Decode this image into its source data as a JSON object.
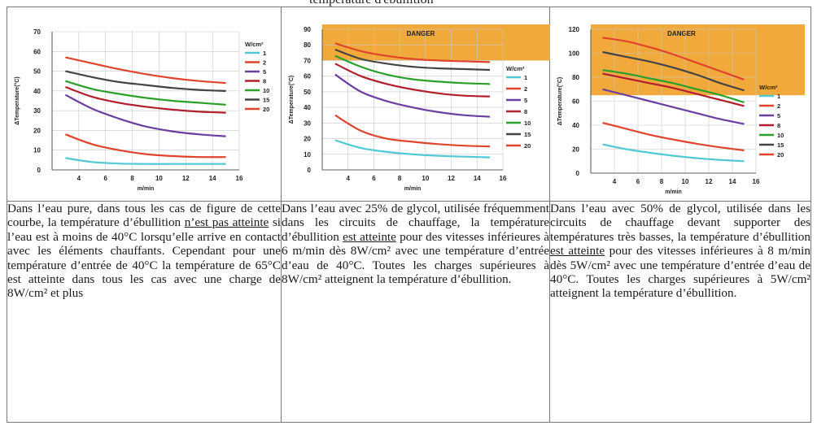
{
  "page": {
    "header_fragment": "température d'ébullition"
  },
  "chart_data": [
    {
      "type": "line",
      "title": "",
      "xlabel": "m/min",
      "ylabel": "ΔTemperature(°C)",
      "xlim": [
        2,
        16
      ],
      "ylim": [
        0,
        70
      ],
      "xticks": [
        2,
        4,
        6,
        8,
        10,
        12,
        14,
        16
      ],
      "yticks": [
        0,
        10,
        20,
        30,
        40,
        50,
        60,
        70
      ],
      "grid": true,
      "legend_title": "W/cm²",
      "legend_position": "right",
      "danger": null,
      "x": [
        3,
        5,
        7,
        9,
        11,
        13,
        15
      ],
      "series": [
        {
          "name": "1",
          "color": "#4fc9d6",
          "values": [
            6,
            4,
            3.2,
            3,
            3,
            3,
            3
          ]
        },
        {
          "name": "2",
          "color": "#e0442c",
          "values": [
            18,
            13,
            10,
            8,
            7,
            6.5,
            6.5
          ]
        },
        {
          "name": "5",
          "color": "#6a3fa0",
          "values": [
            38,
            31,
            26,
            22,
            19.5,
            18,
            17
          ]
        },
        {
          "name": "8",
          "color": "#b11e2c",
          "values": [
            42,
            37,
            34,
            32,
            30.5,
            29.5,
            29
          ]
        },
        {
          "name": "10",
          "color": "#2aa02a",
          "values": [
            45,
            41,
            38.5,
            36.5,
            35,
            34,
            33
          ]
        },
        {
          "name": "15",
          "color": "#444444",
          "values": [
            50,
            47,
            44.5,
            43,
            41.5,
            40.5,
            40
          ]
        },
        {
          "name": "20",
          "color": "#e0442c",
          "values": [
            57,
            54,
            51,
            48.5,
            46.5,
            45,
            44
          ]
        }
      ]
    },
    {
      "type": "line",
      "title": "",
      "xlabel": "m/min",
      "ylabel": "ΔTemperature(°C)",
      "xlim": [
        2,
        16
      ],
      "ylim": [
        0,
        90
      ],
      "xticks": [
        2,
        4,
        6,
        8,
        10,
        12,
        14,
        16
      ],
      "yticks": [
        0,
        10,
        20,
        30,
        40,
        50,
        60,
        70,
        80,
        90
      ],
      "grid": true,
      "legend_title": "W/cm²",
      "legend_position": "right",
      "danger": {
        "label": "DANGER",
        "from": 70,
        "color": "#f0a93a"
      },
      "x": [
        3,
        5,
        7,
        9,
        11,
        13,
        15
      ],
      "series": [
        {
          "name": "1",
          "color": "#4fc9d6",
          "values": [
            19,
            14,
            11.5,
            10,
            9,
            8.5,
            8
          ]
        },
        {
          "name": "2",
          "color": "#e0442c",
          "values": [
            35,
            25,
            20,
            18,
            16.5,
            15.5,
            15
          ]
        },
        {
          "name": "5",
          "color": "#6a3fa0",
          "values": [
            61,
            50,
            44,
            40,
            37,
            35,
            34
          ]
        },
        {
          "name": "8",
          "color": "#b11e2c",
          "values": [
            68,
            60,
            55,
            51.5,
            49,
            47.5,
            47
          ]
        },
        {
          "name": "10",
          "color": "#2aa02a",
          "values": [
            73,
            66,
            61,
            58,
            56.5,
            55.5,
            55
          ]
        },
        {
          "name": "15",
          "color": "#444444",
          "values": [
            77,
            71,
            68,
            66,
            65,
            64.5,
            64
          ]
        },
        {
          "name": "20",
          "color": "#e0442c",
          "values": [
            81,
            76,
            73,
            71,
            70,
            69.5,
            69
          ]
        }
      ]
    },
    {
      "type": "line",
      "title": "",
      "xlabel": "m/min",
      "ylabel": "ΔTemperature(°C)",
      "xlim": [
        2,
        16
      ],
      "ylim": [
        0,
        120
      ],
      "xticks": [
        2,
        4,
        6,
        8,
        10,
        12,
        14,
        16
      ],
      "yticks": [
        0,
        20,
        40,
        60,
        80,
        100,
        120
      ],
      "grid": true,
      "legend_title": "W/cm²",
      "legend_position": "right",
      "danger": {
        "label": "DANGER",
        "from": 65,
        "color": "#f0a93a"
      },
      "x": [
        3,
        5,
        7,
        9,
        11,
        13,
        15
      ],
      "series": [
        {
          "name": "1",
          "color": "#4fc9d6",
          "values": [
            24,
            20,
            17,
            14.5,
            12.5,
            11,
            10
          ]
        },
        {
          "name": "2",
          "color": "#e0442c",
          "values": [
            42,
            37,
            32,
            28,
            24.5,
            21.5,
            19
          ]
        },
        {
          "name": "5",
          "color": "#6a3fa0",
          "values": [
            70,
            65,
            60,
            55,
            50,
            45,
            41
          ]
        },
        {
          "name": "8",
          "color": "#b11e2c",
          "values": [
            83,
            79,
            75,
            71,
            66,
            61,
            56
          ]
        },
        {
          "name": "10",
          "color": "#2aa02a",
          "values": [
            86,
            83,
            79,
            75,
            70,
            65,
            59
          ]
        },
        {
          "name": "15",
          "color": "#444444",
          "values": [
            101,
            97,
            93,
            88,
            82,
            75,
            69
          ]
        },
        {
          "name": "20",
          "color": "#e0442c",
          "values": [
            113,
            110,
            105,
            99,
            92,
            85,
            78
          ]
        }
      ]
    }
  ],
  "descriptions": [
    {
      "before": "Dans l’eau pure,  dans tous les cas de figure de cette courbe, la température d’ébullition ",
      "underlined": "n’est pas atteinte",
      "after": " si l’eau est à moins de 40°C lorsqu’elle arrive en contact avec les éléments chauffants. Cependant pour une température d’entrée de 40°C la température de 65°C est atteinte dans tous les cas avec une charge de 8W/cm² et plus"
    },
    {
      "before": "Dans l’eau avec 25% de glycol, utilisée fréquemment dans les circuits de chauffage, la température d’ébullition ",
      "underlined": "est atteinte",
      "after": " pour des vitesses inférieures à 6 m/min dès 8W/cm² avec une température d’entrée d’eau de 40°C.  Toutes les charges supérieures à 8W/cm² atteignent la température d’ébullition."
    },
    {
      "before": "Dans l’eau avec 50% de glycol, utilisée dans les circuits de chauffage devant supporter des températures très basses, la température d’ébullition ",
      "underlined": "est atteinte",
      "after": " pour des vitesses inférieures à 8 m/min dès 5W/cm² avec une température d’entrée d’eau de 40°C.  Toutes les charges supérieures à 5W/cm² atteignent la température d’ébullition."
    }
  ]
}
